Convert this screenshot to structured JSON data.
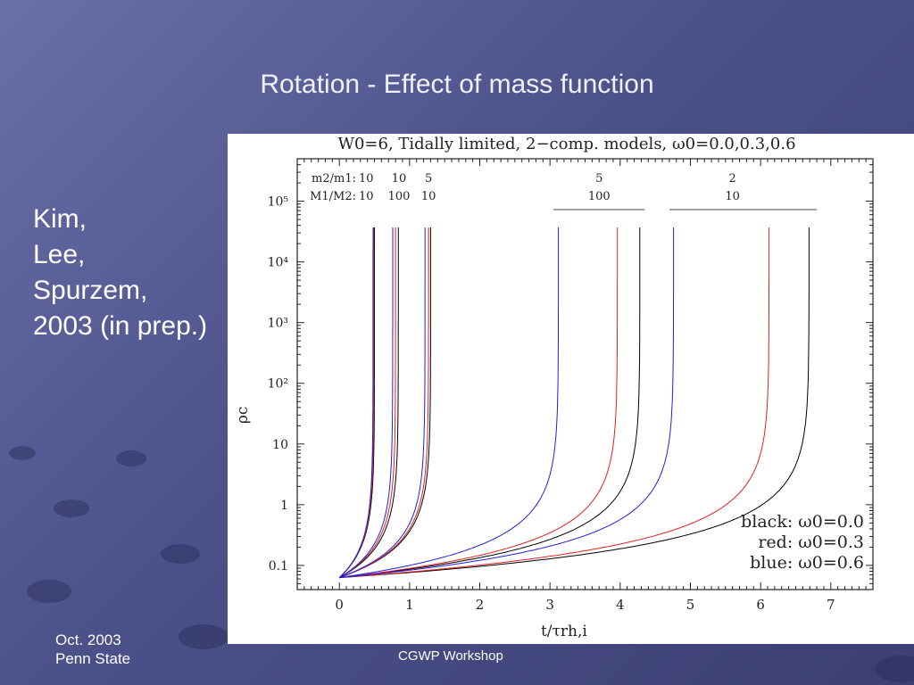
{
  "slide": {
    "title": "Rotation - Effect of mass function",
    "authors": [
      "Kim,",
      "Lee,",
      "Spurzem,",
      "2003 (in prep.)"
    ],
    "footer_date": [
      "Oct. 2003",
      "Penn State"
    ],
    "footer_center": "CGWP Workshop"
  },
  "chart_data": {
    "type": "line",
    "title": "W0=6, Tidally limited, 2−comp. models, ω0=0.0,0.3,0.6",
    "xlabel": "t/τrh,i",
    "ylabel": "ρc",
    "xlim": [
      -0.6,
      7.6
    ],
    "ylim": [
      0.04,
      500000
    ],
    "yscale": "log",
    "xticks": [
      "0",
      "1",
      "2",
      "3",
      "4",
      "5",
      "6",
      "7"
    ],
    "yticks": [
      "0.1",
      "1",
      "10",
      "10²",
      "10³",
      "10⁴",
      "10⁵"
    ],
    "rho_initial": 0.063,
    "rho_final": 37000,
    "colors": {
      "black": "#000000",
      "red": "#e02020",
      "blue": "#2020e0"
    },
    "legend": [
      "black:  ω0=0.0",
      "red:  ω0=0.3",
      "blue:  ω0=0.6"
    ],
    "legend_position": "bottom-right",
    "group_labels": {
      "row1_prefix": "m2/m1:",
      "row2_prefix": "M1/M2:",
      "groups": [
        {
          "m2m1": "10",
          "M1M2": "10",
          "t_collapse": {
            "black": 0.5,
            "red": 0.49,
            "blue": 0.48
          }
        },
        {
          "m2m1": "10",
          "M1M2": "100",
          "t_collapse": {
            "black": 0.84,
            "red": 0.8,
            "blue": 0.76
          }
        },
        {
          "m2m1": "5",
          "M1M2": "10",
          "t_collapse": {
            "black": 1.3,
            "red": 1.27,
            "blue": 1.22
          }
        },
        {
          "m2m1": "5",
          "M1M2": "100",
          "t_collapse": {
            "black": 4.28,
            "red": 3.96,
            "blue": 3.12
          }
        },
        {
          "m2m1": "2",
          "M1M2": "10",
          "t_collapse": {
            "black": 6.69,
            "red": 6.12,
            "blue": 4.76
          }
        }
      ]
    }
  }
}
